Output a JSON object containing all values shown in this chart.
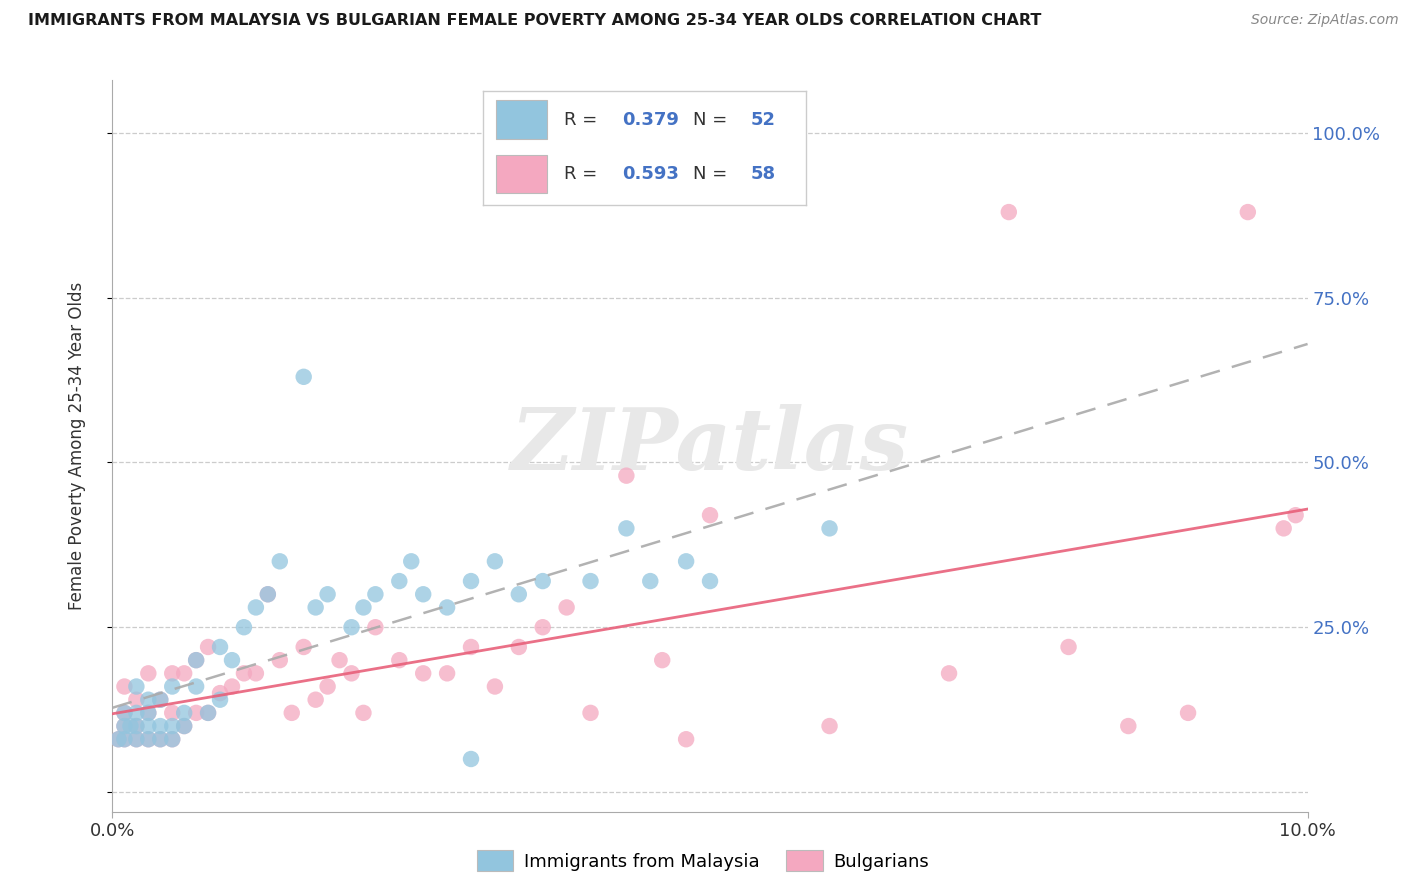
{
  "title": "IMMIGRANTS FROM MALAYSIA VS BULGARIAN FEMALE POVERTY AMONG 25-34 YEAR OLDS CORRELATION CHART",
  "source": "Source: ZipAtlas.com",
  "ylabel": "Female Poverty Among 25-34 Year Olds",
  "xlim": [
    0.0,
    0.1
  ],
  "ylim": [
    -0.03,
    1.08
  ],
  "color_blue": "#92c5de",
  "color_pink": "#f4a8c0",
  "line_blue_color": "#aaaaaa",
  "line_pink_color": "#e8607a",
  "r_blue": 0.379,
  "n_blue": 52,
  "r_pink": 0.593,
  "n_pink": 58,
  "watermark": "ZIPatlas",
  "background": "#ffffff",
  "grid_color": "#cccccc",
  "ytick_color": "#4472c4",
  "title_color": "#1a1a1a",
  "source_color": "#888888",
  "legend_text_color": "#4472c4",
  "legend_label_color": "#333333",
  "blue_x": [
    0.0005,
    0.001,
    0.001,
    0.001,
    0.0015,
    0.002,
    0.002,
    0.002,
    0.002,
    0.003,
    0.003,
    0.003,
    0.003,
    0.004,
    0.004,
    0.004,
    0.005,
    0.005,
    0.005,
    0.006,
    0.006,
    0.007,
    0.007,
    0.008,
    0.009,
    0.009,
    0.01,
    0.011,
    0.012,
    0.013,
    0.014,
    0.016,
    0.017,
    0.018,
    0.02,
    0.021,
    0.022,
    0.024,
    0.025,
    0.026,
    0.028,
    0.03,
    0.032,
    0.034,
    0.036,
    0.04,
    0.043,
    0.045,
    0.048,
    0.05,
    0.06,
    0.03
  ],
  "blue_y": [
    0.08,
    0.08,
    0.1,
    0.12,
    0.1,
    0.08,
    0.1,
    0.12,
    0.16,
    0.08,
    0.1,
    0.12,
    0.14,
    0.08,
    0.1,
    0.14,
    0.08,
    0.1,
    0.16,
    0.1,
    0.12,
    0.16,
    0.2,
    0.12,
    0.14,
    0.22,
    0.2,
    0.25,
    0.28,
    0.3,
    0.35,
    0.63,
    0.28,
    0.3,
    0.25,
    0.28,
    0.3,
    0.32,
    0.35,
    0.3,
    0.28,
    0.32,
    0.35,
    0.3,
    0.32,
    0.32,
    0.4,
    0.32,
    0.35,
    0.32,
    0.4,
    0.05
  ],
  "pink_x": [
    0.0005,
    0.001,
    0.001,
    0.001,
    0.001,
    0.002,
    0.002,
    0.002,
    0.003,
    0.003,
    0.003,
    0.004,
    0.004,
    0.005,
    0.005,
    0.005,
    0.006,
    0.006,
    0.007,
    0.007,
    0.008,
    0.008,
    0.009,
    0.01,
    0.011,
    0.012,
    0.013,
    0.014,
    0.015,
    0.016,
    0.017,
    0.018,
    0.019,
    0.02,
    0.021,
    0.022,
    0.024,
    0.026,
    0.028,
    0.03,
    0.032,
    0.034,
    0.036,
    0.038,
    0.04,
    0.043,
    0.046,
    0.048,
    0.05,
    0.06,
    0.07,
    0.075,
    0.08,
    0.085,
    0.09,
    0.095,
    0.098,
    0.099
  ],
  "pink_y": [
    0.08,
    0.08,
    0.1,
    0.12,
    0.16,
    0.08,
    0.1,
    0.14,
    0.08,
    0.12,
    0.18,
    0.08,
    0.14,
    0.08,
    0.12,
    0.18,
    0.1,
    0.18,
    0.12,
    0.2,
    0.12,
    0.22,
    0.15,
    0.16,
    0.18,
    0.18,
    0.3,
    0.2,
    0.12,
    0.22,
    0.14,
    0.16,
    0.2,
    0.18,
    0.12,
    0.25,
    0.2,
    0.18,
    0.18,
    0.22,
    0.16,
    0.22,
    0.25,
    0.28,
    0.12,
    0.48,
    0.2,
    0.08,
    0.42,
    0.1,
    0.18,
    0.88,
    0.22,
    0.1,
    0.12,
    0.88,
    0.4,
    0.42
  ]
}
